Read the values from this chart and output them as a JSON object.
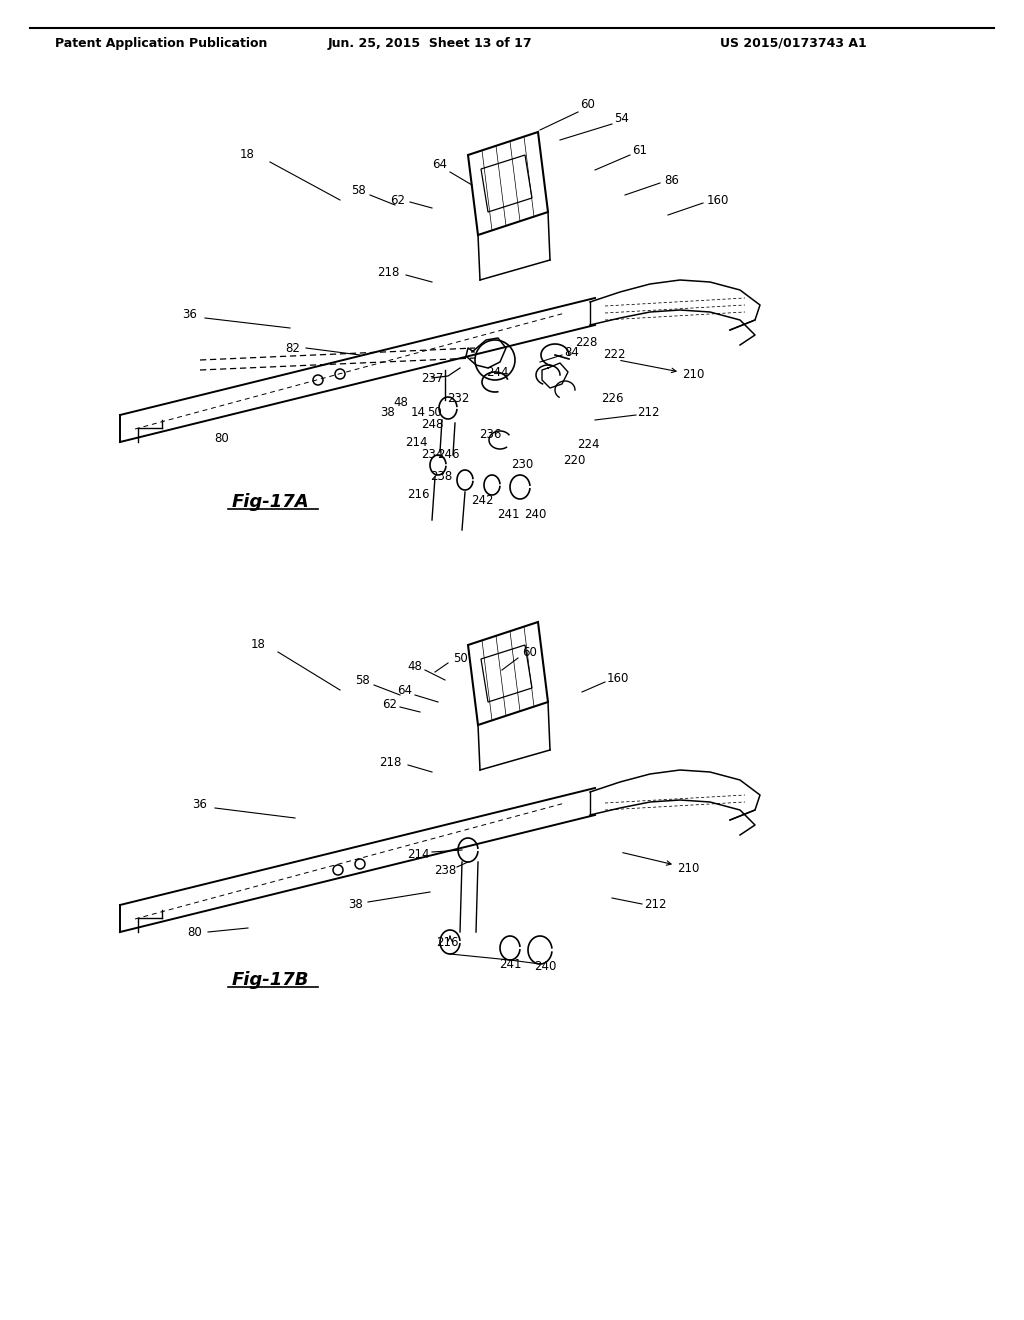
{
  "background_color": "#ffffff",
  "header_left": "Patent Application Publication",
  "header_center": "Jun. 25, 2015  Sheet 13 of 17",
  "header_right": "US 2015/0173743 A1",
  "fig_label_A": "Fig-17A",
  "fig_label_B": "Fig-17B",
  "text_color": "#000000",
  "line_color": "#000000",
  "fig_width": 10.24,
  "fig_height": 13.2
}
